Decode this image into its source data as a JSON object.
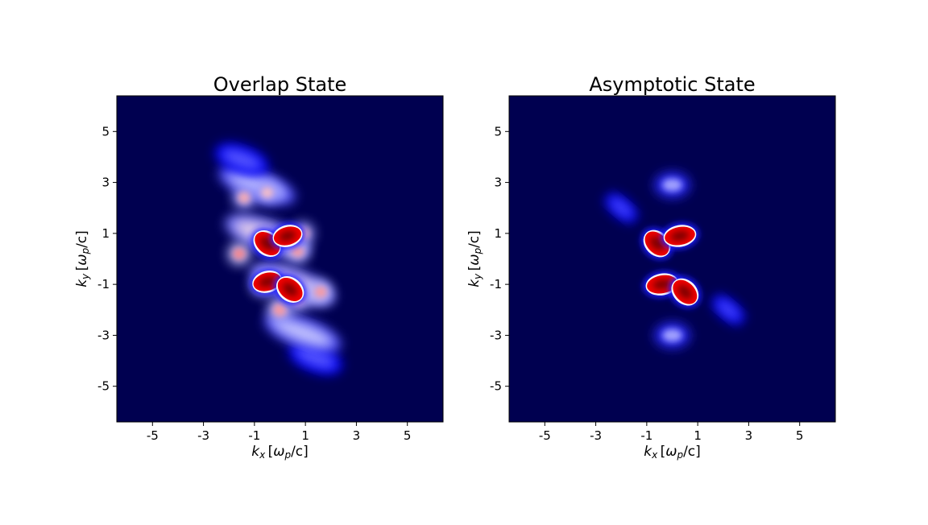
{
  "chart_data": [
    {
      "type": "heatmap",
      "title": "Overlap State",
      "xlabel": {
        "base": "k",
        "sub": "x",
        "unit_open": "[",
        "unit_omega": "ω",
        "unit_sub": "p",
        "unit_rest": "/c]"
      },
      "ylabel": {
        "base": "k",
        "sub": "y",
        "unit_open": "[",
        "unit_omega": "ω",
        "unit_sub": "p",
        "unit_rest": "/c]"
      },
      "xlim": [
        -6.4,
        6.4
      ],
      "ylim": [
        6.4,
        -6.4
      ],
      "xticks": [
        -5,
        -3,
        -1,
        1,
        3,
        5
      ],
      "yticks": [
        -5,
        -3,
        -1,
        1,
        3,
        5
      ],
      "colormap": [
        "#000050",
        "#0000ff",
        "#ffffff",
        "#ff0000",
        "#800000"
      ],
      "features": [
        {
          "kind": "band",
          "cx": 1.4,
          "cy": -3.9,
          "len": 2.2,
          "width": 0.55,
          "angle": 20,
          "level": 0.42
        },
        {
          "kind": "band",
          "cx": 0.9,
          "cy": -2.9,
          "len": 3.2,
          "width": 0.6,
          "angle": 20,
          "level": 0.55
        },
        {
          "kind": "band",
          "cx": 0.5,
          "cy": -1.0,
          "len": 3.5,
          "width": 0.65,
          "angle": 20,
          "level": 0.62
        },
        {
          "kind": "band",
          "cx": -0.5,
          "cy": 0.9,
          "len": 3.5,
          "width": 0.65,
          "angle": 20,
          "level": 0.62
        },
        {
          "kind": "band",
          "cx": -0.9,
          "cy": 2.9,
          "len": 3.2,
          "width": 0.6,
          "angle": 20,
          "level": 0.55
        },
        {
          "kind": "band",
          "cx": -1.5,
          "cy": 3.9,
          "len": 2.2,
          "width": 0.55,
          "angle": 20,
          "level": 0.42
        },
        {
          "kind": "spot",
          "cx": 0.0,
          "cy": -2.0,
          "r": 0.5,
          "level": 0.6
        },
        {
          "kind": "spot",
          "cx": 0.7,
          "cy": -1.6,
          "r": 0.45,
          "level": 0.58
        },
        {
          "kind": "spot",
          "cx": -0.7,
          "cy": -1.0,
          "r": 0.45,
          "level": 0.62
        },
        {
          "kind": "spot",
          "cx": 1.6,
          "cy": -1.3,
          "r": 0.45,
          "level": 0.6
        },
        {
          "kind": "spot",
          "cx": 0.7,
          "cy": 0.3,
          "r": 0.45,
          "level": 0.6
        },
        {
          "kind": "spot",
          "cx": -1.6,
          "cy": 0.2,
          "r": 0.45,
          "level": 0.62
        },
        {
          "kind": "spot",
          "cx": 0.9,
          "cy": 1.0,
          "r": 0.45,
          "level": 0.58
        },
        {
          "kind": "spot",
          "cx": -1.4,
          "cy": 2.4,
          "r": 0.45,
          "level": 0.58
        },
        {
          "kind": "spot",
          "cx": -0.5,
          "cy": 2.6,
          "r": 0.45,
          "level": 0.56
        },
        {
          "kind": "lobe",
          "cx": -0.5,
          "cy": -0.9,
          "rx": 0.55,
          "ry": 0.35,
          "angle": -15,
          "level": 1.0
        },
        {
          "kind": "lobe",
          "cx": 0.4,
          "cy": -1.2,
          "rx": 0.55,
          "ry": 0.38,
          "angle": 40,
          "level": 1.0
        },
        {
          "kind": "lobe",
          "cx": -0.5,
          "cy": 0.6,
          "rx": 0.55,
          "ry": 0.38,
          "angle": 40,
          "level": 1.0
        },
        {
          "kind": "lobe",
          "cx": 0.3,
          "cy": 0.9,
          "rx": 0.55,
          "ry": 0.35,
          "angle": -15,
          "level": 1.0
        }
      ]
    },
    {
      "type": "heatmap",
      "title": "Asymptotic State",
      "xlabel": {
        "base": "k",
        "sub": "x",
        "unit_open": "[",
        "unit_omega": "ω",
        "unit_sub": "p",
        "unit_rest": "/c]"
      },
      "ylabel": {
        "base": "k",
        "sub": "y",
        "unit_open": "[",
        "unit_omega": "ω",
        "unit_sub": "p",
        "unit_rest": "/c]"
      },
      "xlim": [
        -6.4,
        6.4
      ],
      "ylim": [
        6.4,
        -6.4
      ],
      "xticks": [
        -5,
        -3,
        -1,
        1,
        3,
        5
      ],
      "yticks": [
        -5,
        -3,
        -1,
        1,
        3,
        5
      ],
      "colormap": [
        "#000050",
        "#0000ff",
        "#ffffff",
        "#ff0000",
        "#800000"
      ],
      "features": [
        {
          "kind": "spot",
          "cx": 0.0,
          "cy": -3.0,
          "r": 0.5,
          "level": 0.42,
          "sx": 1.4
        },
        {
          "kind": "spot",
          "cx": 0.0,
          "cy": 2.9,
          "r": 0.5,
          "level": 0.42,
          "sx": 1.4
        },
        {
          "kind": "band",
          "cx": 2.2,
          "cy": -2.0,
          "len": 1.5,
          "width": 0.4,
          "angle": 40,
          "level": 0.4
        },
        {
          "kind": "band",
          "cx": -2.0,
          "cy": 2.0,
          "len": 1.5,
          "width": 0.4,
          "angle": 40,
          "level": 0.4
        },
        {
          "kind": "lobe",
          "cx": -0.4,
          "cy": -1.0,
          "rx": 0.6,
          "ry": 0.35,
          "angle": -10,
          "level": 1.0
        },
        {
          "kind": "lobe",
          "cx": 0.5,
          "cy": -1.3,
          "rx": 0.55,
          "ry": 0.38,
          "angle": 45,
          "level": 1.0
        },
        {
          "kind": "lobe",
          "cx": -0.6,
          "cy": 0.6,
          "rx": 0.55,
          "ry": 0.38,
          "angle": 45,
          "level": 1.0
        },
        {
          "kind": "lobe",
          "cx": 0.3,
          "cy": 0.9,
          "rx": 0.6,
          "ry": 0.35,
          "angle": -10,
          "level": 1.0
        }
      ]
    }
  ]
}
